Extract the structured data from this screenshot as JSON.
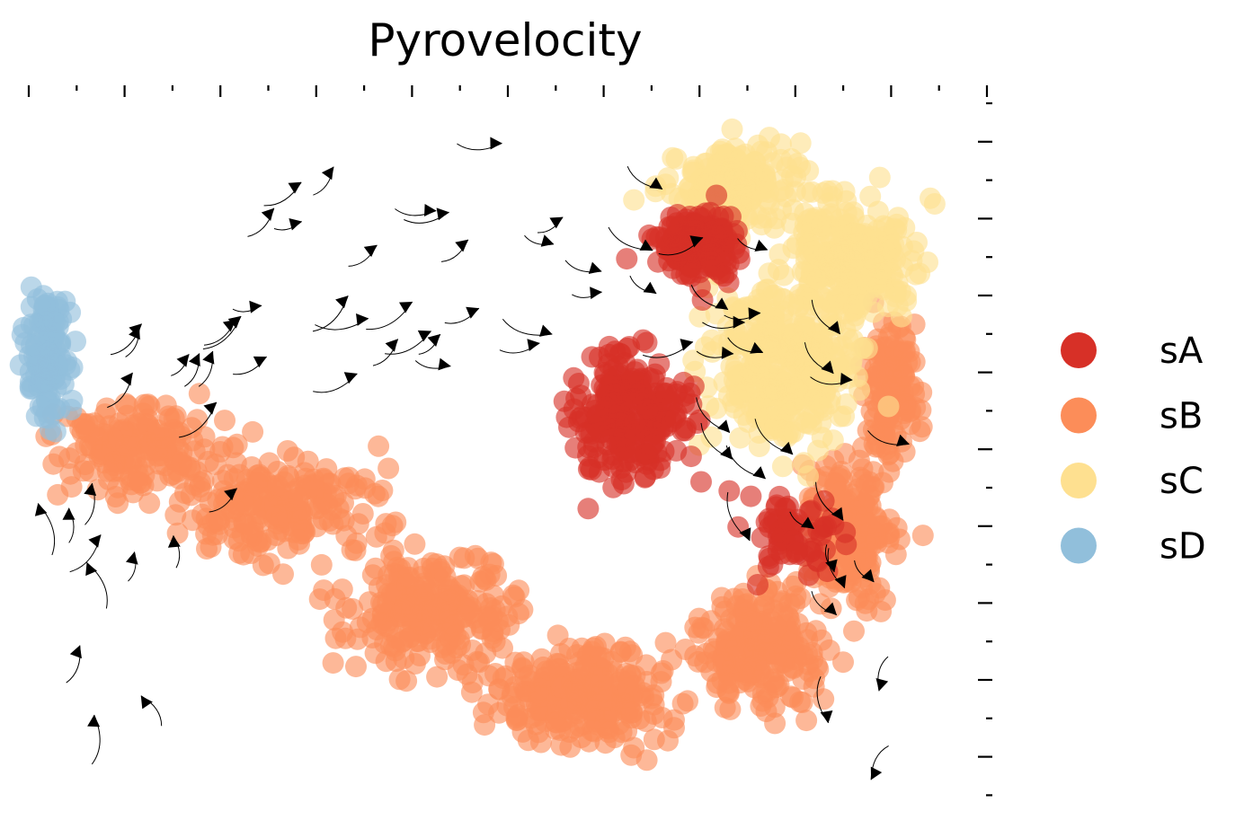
{
  "chart_data": {
    "type": "scatter",
    "subtype": "embedding-with-velocity-streamlines",
    "title": "Pyrovelocity",
    "xlabel": "",
    "ylabel": "",
    "grid": false,
    "axes_ticks": "minor/major ticks on top and right, no tick labels",
    "legend": {
      "placement": "right",
      "entries": [
        {
          "name": "sA",
          "color": "#d73027"
        },
        {
          "name": "sB",
          "color": "#fc8d59"
        },
        {
          "name": "sC",
          "color": "#fee090"
        },
        {
          "name": "sD",
          "color": "#91bfdb"
        }
      ]
    },
    "series": [
      {
        "name": "sA",
        "color": "#d73027",
        "regions": [
          {
            "cx": 63,
            "cy": 45,
            "rx": 6,
            "ry": 9,
            "n": 260
          },
          {
            "cx": 70,
            "cy": 22,
            "rx": 5,
            "ry": 5,
            "n": 200
          },
          {
            "cx": 80,
            "cy": 62,
            "rx": 5,
            "ry": 5,
            "n": 70
          }
        ]
      },
      {
        "name": "sB",
        "color": "#fc8d59",
        "regions": [
          {
            "cx": 12,
            "cy": 50,
            "rx": 10,
            "ry": 7,
            "n": 180
          },
          {
            "cx": 27,
            "cy": 58,
            "rx": 11,
            "ry": 8,
            "n": 220
          },
          {
            "cx": 42,
            "cy": 72,
            "rx": 10,
            "ry": 9,
            "n": 260
          },
          {
            "cx": 58,
            "cy": 84,
            "rx": 10,
            "ry": 8,
            "n": 280
          },
          {
            "cx": 76,
            "cy": 78,
            "rx": 7,
            "ry": 9,
            "n": 230
          },
          {
            "cx": 86,
            "cy": 62,
            "rx": 5,
            "ry": 12,
            "n": 200
          },
          {
            "cx": 90,
            "cy": 42,
            "rx": 3,
            "ry": 11,
            "n": 150
          }
        ]
      },
      {
        "name": "sC",
        "color": "#fee090",
        "regions": [
          {
            "cx": 79,
            "cy": 38,
            "rx": 8,
            "ry": 13,
            "n": 380
          },
          {
            "cx": 86,
            "cy": 24,
            "rx": 7,
            "ry": 9,
            "n": 260
          },
          {
            "cx": 74,
            "cy": 14,
            "rx": 7,
            "ry": 6,
            "n": 180
          }
        ]
      },
      {
        "name": "sD",
        "color": "#91bfdb",
        "regions": [
          {
            "cx": 3,
            "cy": 37,
            "rx": 2.5,
            "ry": 10,
            "n": 140
          }
        ]
      }
    ],
    "xlim": [
      0,
      100
    ],
    "ylim": [
      0,
      100
    ]
  }
}
